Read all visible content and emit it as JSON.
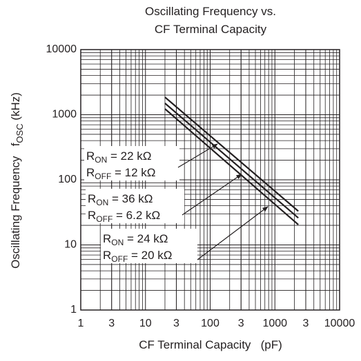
{
  "chart_data": {
    "type": "line",
    "title": [
      "Oscillating Frequency vs.",
      "CF Terminal Capacity"
    ],
    "xlabel": "CF Terminal Capacity   (pF)",
    "ylabel": {
      "text": "Oscillating Frequency   f",
      "sub": "OSC",
      "unit": " (kHz)"
    },
    "x": [
      20,
      2300
    ],
    "series": [
      {
        "color": "#231f20",
        "values": [
          1860,
          33
        ]
      },
      {
        "color": "#231f20",
        "values": [
          1500,
          26
        ]
      },
      {
        "color": "#231f20",
        "values": [
          1230,
          20.5
        ]
      }
    ],
    "xscale": "log",
    "yscale": "log",
    "xlim": [
      1,
      10000
    ],
    "ylim": [
      1,
      10000
    ],
    "xticks": [
      1,
      3,
      10,
      {
        "value": 30,
        "label": "3"
      },
      100,
      {
        "value": 300,
        "label": "3"
      },
      1000,
      {
        "value": 3000,
        "label": "3"
      },
      10000
    ],
    "yticks": [
      1,
      10,
      100,
      1000,
      10000
    ],
    "grid": "minor",
    "annotations": [
      [
        {
          "main": "R",
          "sub": "ON",
          "rest": " = 22 kΩ"
        },
        {
          "main": "R",
          "sub": "OFF",
          "rest": " = 12 kΩ"
        }
      ],
      [
        {
          "main": "R",
          "sub": "ON",
          "rest": " = 36 kΩ"
        },
        {
          "main": "R",
          "sub": "OFF",
          "rest": " = 6.2 kΩ"
        }
      ],
      [
        {
          "main": "R",
          "sub": "ON",
          "rest": " = 24 kΩ"
        },
        {
          "main": "R",
          "sub": "OFF",
          "rest": " = 20 kΩ"
        }
      ]
    ]
  }
}
